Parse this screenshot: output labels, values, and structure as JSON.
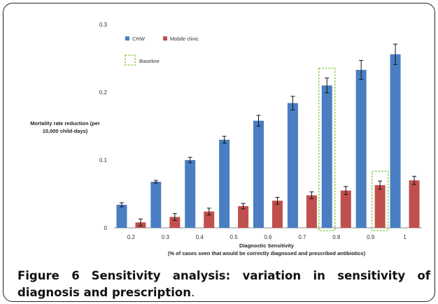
{
  "chart_data": {
    "type": "bar",
    "categories": [
      "0.2",
      "0.3",
      "0.4",
      "0.5",
      "0.6",
      "0.7",
      "0.8",
      "0.9",
      "1"
    ],
    "series": [
      {
        "name": "CHW",
        "color": "#4a7ec3",
        "values": [
          0.034,
          0.068,
          0.1,
          0.13,
          0.158,
          0.184,
          0.21,
          0.233,
          0.256
        ],
        "errors": [
          0.003,
          0.002,
          0.004,
          0.005,
          0.008,
          0.01,
          0.011,
          0.014,
          0.015
        ]
      },
      {
        "name": "Mobile clinic",
        "color": "#c0504d",
        "values": [
          0.008,
          0.016,
          0.024,
          0.032,
          0.04,
          0.048,
          0.055,
          0.063,
          0.07
        ],
        "errors": [
          0.005,
          0.005,
          0.005,
          0.004,
          0.005,
          0.005,
          0.006,
          0.006,
          0.006
        ]
      }
    ],
    "ylim": [
      0,
      0.3
    ],
    "yticks": [
      "0",
      "0.1",
      "0.2",
      "0.3"
    ],
    "ylabel": [
      "Mortality rate reduction (per",
      "10,000 child-days)"
    ],
    "xlabel": [
      "Diagnostic Sensitivity",
      "(% of cases seen that would be correctly diagnosed and prescribed antibiotics)"
    ],
    "baseline_label": "Baseline",
    "baseline_highlight": [
      {
        "series": "CHW",
        "category": "0.8"
      },
      {
        "series": "Mobile clinic",
        "category": "0.9"
      }
    ],
    "grid": false,
    "legend_position": "top-left"
  },
  "caption": {
    "figure_label": "Figure 6",
    "title": "Sensitivity analysis: variation in sensitivity of diagnosis and prescription",
    "end": "."
  }
}
